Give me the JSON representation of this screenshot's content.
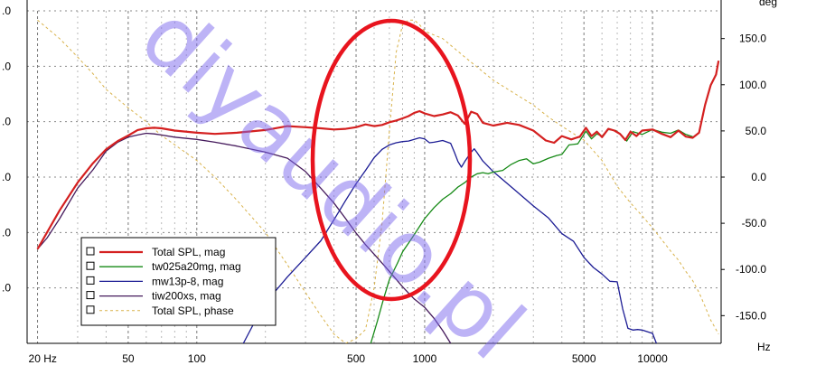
{
  "chart_data": {
    "type": "line",
    "x_scale": "log",
    "x_range_hz": [
      18,
      20000
    ],
    "xunit": "Hz",
    "x_ticks": [
      {
        "v": 20,
        "label": "20 Hz"
      },
      {
        "v": 50,
        "label": "50"
      },
      {
        "v": 100,
        "label": "100"
      },
      {
        "v": 500,
        "label": "500"
      },
      {
        "v": 1000,
        "label": "1000"
      },
      {
        "v": 5000,
        "label": "5000"
      },
      {
        "v": 10000,
        "label": "10000"
      }
    ],
    "left_axis": {
      "range": [
        60,
        120
      ],
      "ticks": [
        {
          "v": 70,
          "label": ".0"
        },
        {
          "v": 80,
          "label": ".0"
        },
        {
          "v": 90,
          "label": ".0"
        },
        {
          "v": 100,
          "label": ".0"
        },
        {
          "v": 110,
          "label": ".0"
        },
        {
          "v": 120,
          "label": ".0"
        }
      ]
    },
    "right_axis": {
      "unit": "deg",
      "range": [
        -180,
        180
      ],
      "ticks": [
        {
          "v": 150,
          "label": "150.0"
        },
        {
          "v": 100,
          "label": "100.0"
        },
        {
          "v": 50,
          "label": "50.0"
        },
        {
          "v": 0,
          "label": "0.0"
        },
        {
          "v": -50,
          "label": "-50.0"
        },
        {
          "v": -100,
          "label": "-100.0"
        },
        {
          "v": -150,
          "label": "-150.0"
        }
      ]
    },
    "grid": true,
    "legend_position": "lower-left",
    "series": [
      {
        "name": "Total SPL, mag",
        "axis": "left",
        "color": "#d42020",
        "width": 2.2,
        "points": [
          [
            20,
            77
          ],
          [
            22,
            80
          ],
          [
            25,
            84
          ],
          [
            30,
            89
          ],
          [
            35,
            92.5
          ],
          [
            40,
            95
          ],
          [
            45,
            96.5
          ],
          [
            50,
            97.5
          ],
          [
            55,
            98.5
          ],
          [
            60,
            98.8
          ],
          [
            65,
            98.9
          ],
          [
            70,
            98.8
          ],
          [
            80,
            98.4
          ],
          [
            100,
            98.0
          ],
          [
            120,
            97.8
          ],
          [
            150,
            98.0
          ],
          [
            200,
            98.5
          ],
          [
            250,
            99.2
          ],
          [
            300,
            99.0
          ],
          [
            350,
            98.8
          ],
          [
            400,
            98.6
          ],
          [
            450,
            98.7
          ],
          [
            500,
            99.0
          ],
          [
            550,
            99.5
          ],
          [
            600,
            99.2
          ],
          [
            650,
            99.4
          ],
          [
            700,
            99.9
          ],
          [
            750,
            100.2
          ],
          [
            800,
            100.6
          ],
          [
            850,
            101
          ],
          [
            900,
            101.6
          ],
          [
            950,
            101.9
          ],
          [
            1000,
            101.5
          ],
          [
            1100,
            101
          ],
          [
            1200,
            101.3
          ],
          [
            1300,
            101.7
          ],
          [
            1400,
            101.1
          ],
          [
            1500,
            99.6
          ],
          [
            1600,
            101.8
          ],
          [
            1700,
            101.4
          ],
          [
            1800,
            99.8
          ],
          [
            2000,
            99.3
          ],
          [
            2300,
            99.8
          ],
          [
            2600,
            99.4
          ],
          [
            3000,
            98.4
          ],
          [
            3400,
            96.6
          ],
          [
            3700,
            96.2
          ],
          [
            4000,
            97.4
          ],
          [
            4400,
            96.8
          ],
          [
            4800,
            97.3
          ],
          [
            5100,
            98.9
          ],
          [
            5400,
            97.4
          ],
          [
            5700,
            98.2
          ],
          [
            6000,
            97.2
          ],
          [
            6400,
            98.7
          ],
          [
            6800,
            98.4
          ],
          [
            7200,
            97.8
          ],
          [
            7600,
            96.7
          ],
          [
            8000,
            98.2
          ],
          [
            8500,
            97.4
          ],
          [
            9000,
            98.4
          ],
          [
            10000,
            98.6
          ],
          [
            11000,
            97.8
          ],
          [
            12000,
            97.2
          ],
          [
            13000,
            98.4
          ],
          [
            14000,
            97.3
          ],
          [
            15000,
            97.1
          ],
          [
            16000,
            98
          ],
          [
            17000,
            103
          ],
          [
            18000,
            106.6
          ],
          [
            19000,
            108.5
          ],
          [
            19500,
            111
          ]
        ]
      },
      {
        "name": "tw025a20mg, mag",
        "axis": "left",
        "color": "#168a16",
        "width": 1.3,
        "points": [
          [
            580,
            60
          ],
          [
            620,
            64
          ],
          [
            660,
            68
          ],
          [
            700,
            71.5
          ],
          [
            760,
            74.5
          ],
          [
            800,
            76.5
          ],
          [
            880,
            79
          ],
          [
            1000,
            82.5
          ],
          [
            1100,
            84.5
          ],
          [
            1200,
            86
          ],
          [
            1300,
            87
          ],
          [
            1400,
            88.2
          ],
          [
            1500,
            89
          ],
          [
            1600,
            90
          ],
          [
            1700,
            90.6
          ],
          [
            1800,
            90.8
          ],
          [
            1900,
            90.6
          ],
          [
            2000,
            90.9
          ],
          [
            2200,
            91.2
          ],
          [
            2400,
            92.3
          ],
          [
            2600,
            93
          ],
          [
            2800,
            93.3
          ],
          [
            3000,
            92.4
          ],
          [
            3200,
            92.7
          ],
          [
            3500,
            93.4
          ],
          [
            3800,
            93.9
          ],
          [
            4000,
            94.1
          ],
          [
            4300,
            95.8
          ],
          [
            4700,
            96
          ],
          [
            5100,
            98.3
          ],
          [
            5400,
            96.9
          ],
          [
            5700,
            97.8
          ],
          [
            6000,
            97.4
          ],
          [
            6400,
            98.6
          ],
          [
            6900,
            98.4
          ],
          [
            7300,
            97.6
          ],
          [
            7700,
            96.5
          ],
          [
            8200,
            98.2
          ],
          [
            9000,
            97.7
          ],
          [
            10000,
            98.6
          ],
          [
            11000,
            98.1
          ],
          [
            12000,
            97.9
          ],
          [
            13000,
            98.5
          ],
          [
            14000,
            97.7
          ],
          [
            15000,
            97.3
          ]
        ]
      },
      {
        "name": "mw13p-8, mag",
        "axis": "left",
        "color": "#1c1c94",
        "width": 1.3,
        "points": [
          [
            160,
            60
          ],
          [
            180,
            64
          ],
          [
            200,
            67
          ],
          [
            220,
            69.3
          ],
          [
            250,
            72
          ],
          [
            300,
            75.5
          ],
          [
            350,
            78.5
          ],
          [
            400,
            82.3
          ],
          [
            450,
            85.8
          ],
          [
            500,
            88.8
          ],
          [
            550,
            91.2
          ],
          [
            600,
            93.5
          ],
          [
            650,
            95
          ],
          [
            700,
            95.8
          ],
          [
            750,
            96.2
          ],
          [
            800,
            96.4
          ],
          [
            850,
            96.5
          ],
          [
            900,
            96.8
          ],
          [
            950,
            97.1
          ],
          [
            1000,
            96.9
          ],
          [
            1050,
            96.2
          ],
          [
            1100,
            96.3
          ],
          [
            1200,
            96.6
          ],
          [
            1300,
            96.1
          ],
          [
            1350,
            94.5
          ],
          [
            1400,
            92.8
          ],
          [
            1450,
            91.8
          ],
          [
            1500,
            92.8
          ],
          [
            1600,
            94.5
          ],
          [
            1650,
            95.1
          ],
          [
            1700,
            94.4
          ],
          [
            1800,
            92.9
          ],
          [
            2000,
            91
          ],
          [
            2500,
            87.6
          ],
          [
            3000,
            84.8
          ],
          [
            3500,
            82.6
          ],
          [
            4000,
            79.8
          ],
          [
            4500,
            78.4
          ],
          [
            5000,
            75.5
          ],
          [
            5500,
            73.7
          ],
          [
            6000,
            72.5
          ],
          [
            6500,
            71.2
          ],
          [
            7000,
            71.1
          ],
          [
            7400,
            66.2
          ],
          [
            7800,
            62.7
          ],
          [
            8200,
            62.4
          ],
          [
            8600,
            62.5
          ],
          [
            9000,
            62.4
          ],
          [
            10000,
            61.8
          ],
          [
            10400,
            60
          ]
        ]
      },
      {
        "name": "tiw200xs, mag",
        "axis": "left",
        "color": "#451a5c",
        "width": 1.3,
        "points": [
          [
            20,
            77
          ],
          [
            22,
            79
          ],
          [
            25,
            82.5
          ],
          [
            30,
            88
          ],
          [
            35,
            91.3
          ],
          [
            40,
            94.7
          ],
          [
            45,
            96.3
          ],
          [
            50,
            97.2
          ],
          [
            55,
            97.6
          ],
          [
            60,
            97.9
          ],
          [
            65,
            97.8
          ],
          [
            70,
            97.6
          ],
          [
            80,
            97.2
          ],
          [
            100,
            96.8
          ],
          [
            120,
            96.3
          ],
          [
            150,
            95.6
          ],
          [
            200,
            94.5
          ],
          [
            250,
            93.4
          ],
          [
            300,
            91
          ],
          [
            350,
            88
          ],
          [
            400,
            85.3
          ],
          [
            450,
            82.5
          ],
          [
            500,
            79.9
          ],
          [
            550,
            77.8
          ],
          [
            600,
            76.1
          ],
          [
            700,
            73
          ],
          [
            800,
            70.2
          ],
          [
            900,
            68
          ],
          [
            1000,
            66.5
          ],
          [
            1100,
            64.5
          ],
          [
            1200,
            62.3
          ],
          [
            1300,
            60
          ]
        ]
      },
      {
        "name": "Total SPL, phase",
        "axis": "right",
        "color": "#d8b24a",
        "width": 1,
        "dashed": true,
        "points": [
          [
            20,
            170
          ],
          [
            25,
            150
          ],
          [
            30,
            130
          ],
          [
            35,
            112
          ],
          [
            40,
            95
          ],
          [
            50,
            75
          ],
          [
            60,
            60
          ],
          [
            70,
            45
          ],
          [
            80,
            35
          ],
          [
            100,
            18
          ],
          [
            120,
            0
          ],
          [
            150,
            -25
          ],
          [
            200,
            -60
          ],
          [
            250,
            -95
          ],
          [
            300,
            -125
          ],
          [
            350,
            -150
          ],
          [
            400,
            -170
          ],
          [
            450,
            -180
          ],
          [
            500,
            -175
          ],
          [
            550,
            -165
          ],
          [
            600,
            -120
          ],
          [
            650,
            -50
          ],
          [
            700,
            50
          ],
          [
            750,
            135
          ],
          [
            800,
            165
          ],
          [
            850,
            170
          ],
          [
            900,
            170
          ],
          [
            950,
            165
          ],
          [
            1000,
            158
          ],
          [
            1200,
            150
          ],
          [
            1500,
            130
          ],
          [
            2000,
            105
          ],
          [
            2500,
            90
          ],
          [
            3000,
            78
          ],
          [
            3500,
            65
          ],
          [
            4000,
            55
          ],
          [
            5000,
            40
          ],
          [
            6000,
            18
          ],
          [
            7000,
            -10
          ],
          [
            8000,
            -28
          ],
          [
            9000,
            -42
          ],
          [
            10000,
            -55
          ],
          [
            11000,
            -68
          ],
          [
            12000,
            -80
          ],
          [
            13000,
            -90
          ],
          [
            14000,
            -102
          ],
          [
            15000,
            -112
          ],
          [
            16000,
            -125
          ],
          [
            17000,
            -140
          ],
          [
            18000,
            -155
          ],
          [
            19000,
            -165
          ],
          [
            19500,
            -170
          ]
        ]
      }
    ]
  },
  "overlay": {
    "watermark": "diyaudio.pl"
  }
}
